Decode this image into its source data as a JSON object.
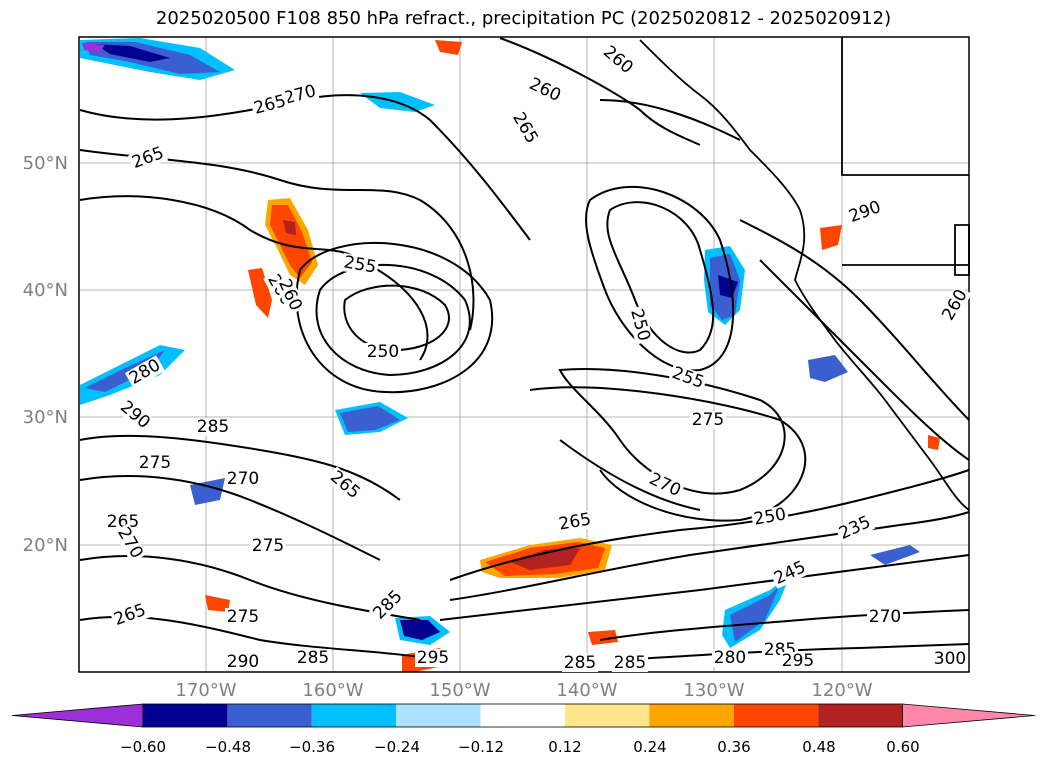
{
  "title": "2025020500 F108 850 hPa refract., precipitation PC (2025020812 - 2025020912)",
  "lat_labels": [
    "50°N",
    "40°N",
    "30°N",
    "20°N"
  ],
  "lon_labels": [
    "170°W",
    "160°W",
    "150°W",
    "140°W",
    "130°W",
    "120°W"
  ],
  "colorbar": {
    "ticks": [
      "−0.60",
      "−0.48",
      "−0.36",
      "−0.24",
      "−0.12",
      "0.12",
      "0.24",
      "0.36",
      "0.48",
      "0.60"
    ],
    "colors": [
      "#9b30d9",
      "#000091",
      "#3a5fd0",
      "#00bfff",
      "#aee0ff",
      "#ffffff",
      "#ffe68c",
      "#ffa500",
      "#ff4500",
      "#b22222",
      "#ff88aa"
    ]
  },
  "contour_labels": [
    "265",
    "270",
    "260",
    "265",
    "260",
    "265",
    "255",
    "260",
    "250",
    "250",
    "255",
    "275",
    "270",
    "250",
    "235",
    "245",
    "270",
    "280",
    "290",
    "285",
    "275",
    "270",
    "265",
    "270",
    "275",
    "265",
    "285",
    "275",
    "285",
    "290",
    "285",
    "295",
    "285",
    "280",
    "285",
    "295",
    "300",
    "290",
    "265",
    "260",
    "265",
    "260"
  ],
  "colors": {
    "land_line": "#000000",
    "grid": "#a0a0a0",
    "neg_dark": "#000091",
    "neg_mid": "#3a5fd0",
    "neg_light": "#00bfff",
    "pos_light": "#ffa500",
    "pos_mid": "#ff4500",
    "pos_dark": "#b22222"
  }
}
